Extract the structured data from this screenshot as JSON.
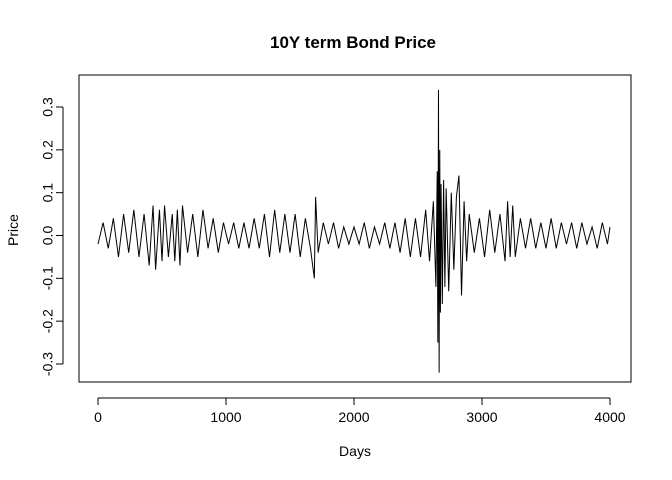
{
  "chart_data": {
    "type": "line",
    "title": "10Y term Bond Price",
    "xlabel": "Days",
    "ylabel": "Price",
    "xlim": [
      0,
      4000
    ],
    "ylim": [
      -0.3,
      0.3
    ],
    "x_ticks": [
      {
        "value": 0,
        "label": "0"
      },
      {
        "value": 1000,
        "label": "1000"
      },
      {
        "value": 2000,
        "label": "2000"
      },
      {
        "value": 3000,
        "label": "3000"
      },
      {
        "value": 4000,
        "label": "4000"
      }
    ],
    "y_ticks": [
      {
        "value": -0.3,
        "label": "-0.3"
      },
      {
        "value": -0.2,
        "label": "-0.2"
      },
      {
        "value": -0.1,
        "label": "-0.1"
      },
      {
        "value": 0.0,
        "label": "0.0"
      },
      {
        "value": 0.1,
        "label": "0.1"
      },
      {
        "value": 0.2,
        "label": "0.2"
      },
      {
        "value": 0.3,
        "label": "0.3"
      }
    ],
    "grid": false,
    "legend": "none",
    "line_color": "#000000",
    "series": [
      {
        "x": [
          0,
          40,
          80,
          120,
          160,
          200,
          240,
          280,
          320,
          360,
          400,
          430,
          450,
          480,
          500,
          520,
          550,
          580,
          600,
          620,
          640,
          660,
          700,
          740,
          780,
          820,
          860,
          900,
          940,
          980,
          1020,
          1060,
          1100,
          1140,
          1180,
          1220,
          1260,
          1300,
          1340,
          1380,
          1420,
          1460,
          1500,
          1540,
          1580,
          1620,
          1660,
          1690,
          1700,
          1720,
          1760,
          1800,
          1840,
          1880,
          1920,
          1960,
          2000,
          2040,
          2080,
          2120,
          2160,
          2200,
          2240,
          2280,
          2320,
          2360,
          2400,
          2440,
          2480,
          2520,
          2560,
          2590,
          2620,
          2640,
          2650,
          2655,
          2660,
          2665,
          2670,
          2675,
          2680,
          2690,
          2700,
          2710,
          2720,
          2740,
          2760,
          2780,
          2800,
          2820,
          2840,
          2860,
          2880,
          2900,
          2940,
          2980,
          3020,
          3060,
          3100,
          3140,
          3180,
          3200,
          3220,
          3240,
          3260,
          3300,
          3340,
          3380,
          3420,
          3460,
          3500,
          3540,
          3580,
          3620,
          3660,
          3700,
          3740,
          3780,
          3820,
          3860,
          3900,
          3940,
          3980,
          4000
        ],
        "y": [
          -0.02,
          0.03,
          -0.03,
          0.04,
          -0.05,
          0.05,
          -0.04,
          0.06,
          -0.05,
          0.05,
          -0.07,
          0.07,
          -0.08,
          0.06,
          -0.06,
          0.07,
          -0.05,
          0.05,
          -0.06,
          0.06,
          -0.07,
          0.07,
          -0.04,
          0.05,
          -0.05,
          0.06,
          -0.03,
          0.04,
          -0.04,
          0.03,
          -0.02,
          0.03,
          -0.03,
          0.03,
          -0.03,
          0.04,
          -0.03,
          0.05,
          -0.05,
          0.06,
          -0.04,
          0.05,
          -0.04,
          0.05,
          -0.05,
          0.04,
          -0.03,
          -0.1,
          0.09,
          -0.04,
          0.03,
          -0.02,
          0.03,
          -0.03,
          0.02,
          -0.02,
          0.02,
          -0.02,
          0.03,
          -0.03,
          0.02,
          -0.02,
          0.03,
          -0.03,
          0.03,
          -0.04,
          0.04,
          -0.05,
          0.04,
          -0.05,
          0.06,
          -0.06,
          0.08,
          -0.12,
          0.15,
          -0.25,
          0.34,
          -0.32,
          0.2,
          -0.18,
          0.12,
          -0.16,
          0.13,
          -0.12,
          0.11,
          -0.13,
          0.1,
          -0.08,
          0.09,
          0.14,
          -0.14,
          0.08,
          -0.06,
          0.05,
          -0.04,
          0.04,
          -0.05,
          0.06,
          -0.04,
          0.05,
          -0.06,
          0.08,
          -0.05,
          0.07,
          -0.05,
          0.04,
          -0.03,
          0.04,
          -0.03,
          0.03,
          -0.03,
          0.04,
          -0.03,
          0.03,
          -0.02,
          0.03,
          -0.03,
          0.03,
          -0.02,
          0.02,
          -0.03,
          0.03,
          -0.02,
          0.02
        ]
      }
    ]
  }
}
